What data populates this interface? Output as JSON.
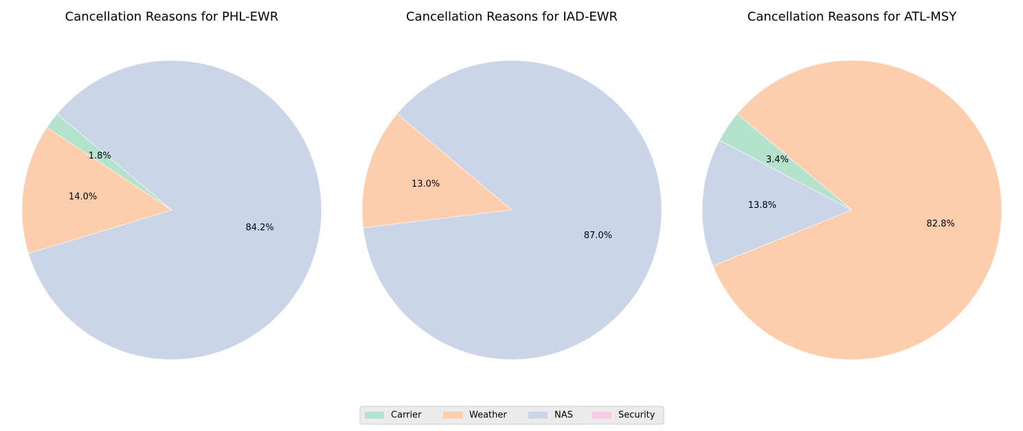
{
  "colors": {
    "Carrier": "#b3e2cd",
    "Weather": "#fdcdac",
    "NAS": "#cbd5e8",
    "Security": "#f4cae4"
  },
  "legend": {
    "placement": "bottom-center",
    "entries": [
      "Carrier",
      "Weather",
      "NAS",
      "Security"
    ]
  },
  "chart_data": [
    {
      "type": "pie",
      "title": "Cancellation Reasons for PHL-EWR",
      "start_angle_deg": 140,
      "direction": "counterclockwise",
      "slices": [
        {
          "category": "Carrier",
          "value": 1.8,
          "label": "1.8%"
        },
        {
          "category": "Weather",
          "value": 14.0,
          "label": "14.0%"
        },
        {
          "category": "NAS",
          "value": 84.2,
          "label": "84.2%"
        },
        {
          "category": "Security",
          "value": 0,
          "label": ""
        }
      ]
    },
    {
      "type": "pie",
      "title": "Cancellation Reasons for IAD-EWR",
      "start_angle_deg": 140,
      "direction": "counterclockwise",
      "slices": [
        {
          "category": "Carrier",
          "value": 0,
          "label": ""
        },
        {
          "category": "Weather",
          "value": 13.0,
          "label": "13.0%"
        },
        {
          "category": "NAS",
          "value": 87.0,
          "label": "87.0%"
        },
        {
          "category": "Security",
          "value": 0,
          "label": ""
        }
      ]
    },
    {
      "type": "pie",
      "title": "Cancellation Reasons for ATL-MSY",
      "start_angle_deg": 140,
      "direction": "counterclockwise",
      "slices": [
        {
          "category": "Carrier",
          "value": 3.4,
          "label": "3.4%"
        },
        {
          "category": "NAS",
          "value": 13.8,
          "label": "13.8%"
        },
        {
          "category": "Weather",
          "value": 82.8,
          "label": "82.8%"
        },
        {
          "category": "Security",
          "value": 0,
          "label": ""
        }
      ]
    }
  ]
}
